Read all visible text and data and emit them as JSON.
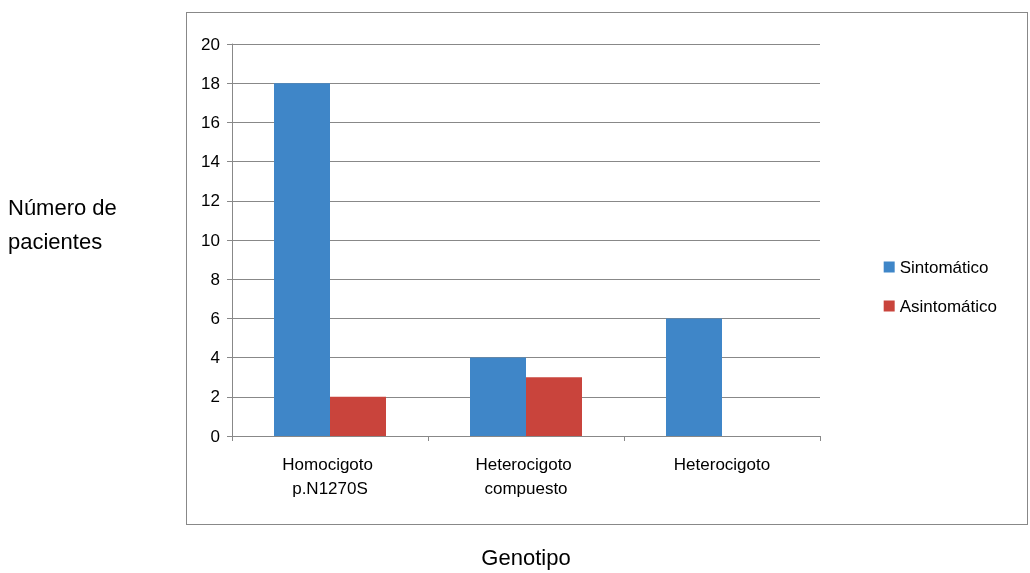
{
  "chart_data": {
    "type": "bar",
    "xlabel": "Genotipo",
    "ylabel": "Número de pacientes",
    "categories": [
      "Homocigoto p.N1270S",
      "Heterocigoto compuesto",
      "Heterocigoto"
    ],
    "series": [
      {
        "name": "Sintomático",
        "color": "#3f86c8",
        "values": [
          18,
          4,
          6
        ]
      },
      {
        "name": "Asintomático",
        "color": "#c9443c",
        "values": [
          2,
          3,
          0
        ]
      }
    ],
    "ylim": [
      0,
      20
    ],
    "yticks": [
      0,
      2,
      4,
      6,
      8,
      10,
      12,
      14,
      16,
      18,
      20
    ],
    "grid": "y",
    "legend": "right"
  }
}
